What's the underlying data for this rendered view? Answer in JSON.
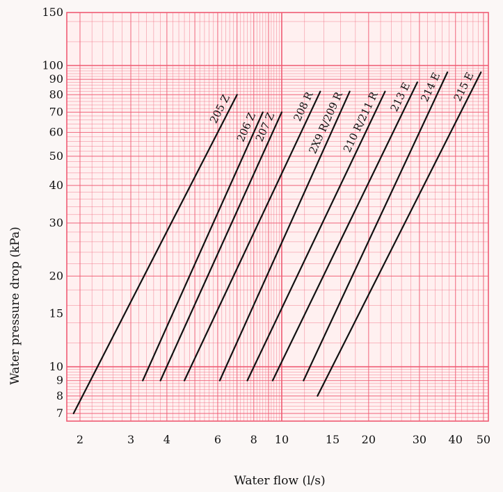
{
  "chart_data": {
    "type": "line",
    "xlabel": "Water flow (l/s)",
    "ylabel": "Water pressure drop (kPa)",
    "x_scale": "log",
    "y_scale": "log",
    "xlim": [
      1.8,
      52
    ],
    "ylim": [
      6.6,
      150
    ],
    "x_ticks": [
      2,
      3,
      4,
      6,
      8,
      10,
      15,
      20,
      30,
      40,
      50
    ],
    "y_ticks": [
      7,
      8,
      9,
      10,
      15,
      20,
      30,
      40,
      50,
      60,
      70,
      80,
      90,
      100,
      150
    ],
    "grid": true,
    "colors": {
      "grid": "#ef5b73",
      "background": "#fff0f0",
      "line": "#111111"
    },
    "series": [
      {
        "name": "205 Z",
        "x": [
          1.9,
          7.0
        ],
        "y": [
          7,
          80
        ]
      },
      {
        "name": "206 Z",
        "x": [
          3.3,
          8.6
        ],
        "y": [
          9,
          70
        ]
      },
      {
        "name": "207 Z",
        "x": [
          3.8,
          10.0
        ],
        "y": [
          9,
          70
        ]
      },
      {
        "name": "208 R",
        "x": [
          4.6,
          13.6
        ],
        "y": [
          9,
          82
        ]
      },
      {
        "name": "2X9 R/209 R",
        "x": [
          6.1,
          17.2
        ],
        "y": [
          9,
          82
        ]
      },
      {
        "name": "210 R/211 R",
        "x": [
          7.6,
          22.8
        ],
        "y": [
          9,
          82
        ]
      },
      {
        "name": "213 E",
        "x": [
          9.3,
          29.5
        ],
        "y": [
          9,
          88
        ]
      },
      {
        "name": "214 E",
        "x": [
          11.9,
          37.5
        ],
        "y": [
          9,
          95
        ]
      },
      {
        "name": "215 E",
        "x": [
          13.3,
          49.0
        ],
        "y": [
          8,
          95
        ]
      }
    ]
  }
}
